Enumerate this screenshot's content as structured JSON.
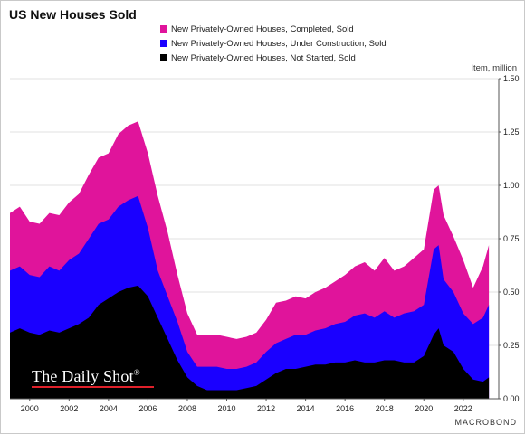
{
  "title": "US New Houses Sold",
  "unit_label": "Item, million",
  "brand": "The Daily Shot",
  "brand_mark": "®",
  "source": "MACROBOND",
  "chart_data": {
    "type": "area",
    "stacked": true,
    "series": [
      {
        "name": "New Privately-Owned Houses, Completed, Sold",
        "color": "#e0149b"
      },
      {
        "name": "New Privately-Owned Houses, Under Construction, Sold",
        "color": "#1a00ff"
      },
      {
        "name": "New Privately-Owned Houses, Not Started, Sold",
        "color": "#000000"
      }
    ],
    "x": [
      1999.0,
      1999.5,
      2000.0,
      2000.5,
      2001.0,
      2001.5,
      2002.0,
      2002.5,
      2003.0,
      2003.5,
      2004.0,
      2004.5,
      2005.0,
      2005.5,
      2006.0,
      2006.5,
      2007.0,
      2007.5,
      2008.0,
      2008.5,
      2009.0,
      2009.5,
      2010.0,
      2010.5,
      2011.0,
      2011.5,
      2012.0,
      2012.5,
      2013.0,
      2013.5,
      2014.0,
      2014.5,
      2015.0,
      2015.5,
      2016.0,
      2016.5,
      2017.0,
      2017.5,
      2018.0,
      2018.5,
      2019.0,
      2019.5,
      2020.0,
      2020.5,
      2020.75,
      2021.0,
      2021.5,
      2022.0,
      2022.5,
      2023.0,
      2023.3
    ],
    "not_started": [
      0.31,
      0.33,
      0.31,
      0.3,
      0.32,
      0.31,
      0.33,
      0.35,
      0.38,
      0.44,
      0.47,
      0.5,
      0.52,
      0.53,
      0.48,
      0.38,
      0.28,
      0.18,
      0.1,
      0.06,
      0.04,
      0.04,
      0.04,
      0.04,
      0.05,
      0.06,
      0.09,
      0.12,
      0.14,
      0.14,
      0.15,
      0.16,
      0.16,
      0.17,
      0.17,
      0.18,
      0.17,
      0.17,
      0.18,
      0.18,
      0.17,
      0.17,
      0.2,
      0.3,
      0.33,
      0.25,
      0.22,
      0.14,
      0.09,
      0.08,
      0.1
    ],
    "under_construction": [
      0.6,
      0.62,
      0.58,
      0.57,
      0.62,
      0.6,
      0.65,
      0.68,
      0.75,
      0.82,
      0.84,
      0.9,
      0.93,
      0.95,
      0.8,
      0.6,
      0.48,
      0.36,
      0.22,
      0.15,
      0.15,
      0.15,
      0.14,
      0.14,
      0.15,
      0.17,
      0.22,
      0.26,
      0.28,
      0.3,
      0.3,
      0.32,
      0.33,
      0.35,
      0.36,
      0.39,
      0.4,
      0.38,
      0.41,
      0.38,
      0.4,
      0.41,
      0.44,
      0.7,
      0.72,
      0.56,
      0.5,
      0.4,
      0.35,
      0.38,
      0.44
    ],
    "completed": [
      0.87,
      0.9,
      0.83,
      0.82,
      0.87,
      0.86,
      0.92,
      0.96,
      1.05,
      1.13,
      1.15,
      1.24,
      1.28,
      1.3,
      1.15,
      0.95,
      0.78,
      0.58,
      0.4,
      0.3,
      0.3,
      0.3,
      0.29,
      0.28,
      0.29,
      0.31,
      0.37,
      0.45,
      0.46,
      0.48,
      0.47,
      0.5,
      0.52,
      0.55,
      0.58,
      0.62,
      0.64,
      0.6,
      0.66,
      0.6,
      0.62,
      0.66,
      0.7,
      0.98,
      1.0,
      0.86,
      0.76,
      0.65,
      0.52,
      0.62,
      0.72
    ],
    "x_ticks": [
      "2000",
      "2002",
      "2004",
      "2006",
      "2008",
      "2010",
      "2012",
      "2014",
      "2016",
      "2018",
      "2020",
      "2022"
    ],
    "y_ticks": [
      "0.00",
      "0.25",
      "0.50",
      "0.75",
      "1.00",
      "1.25",
      "1.50"
    ],
    "xlim": [
      1999.0,
      2023.8
    ],
    "ylim": [
      0,
      1.5
    ],
    "grid": true,
    "legend_position": "top"
  }
}
